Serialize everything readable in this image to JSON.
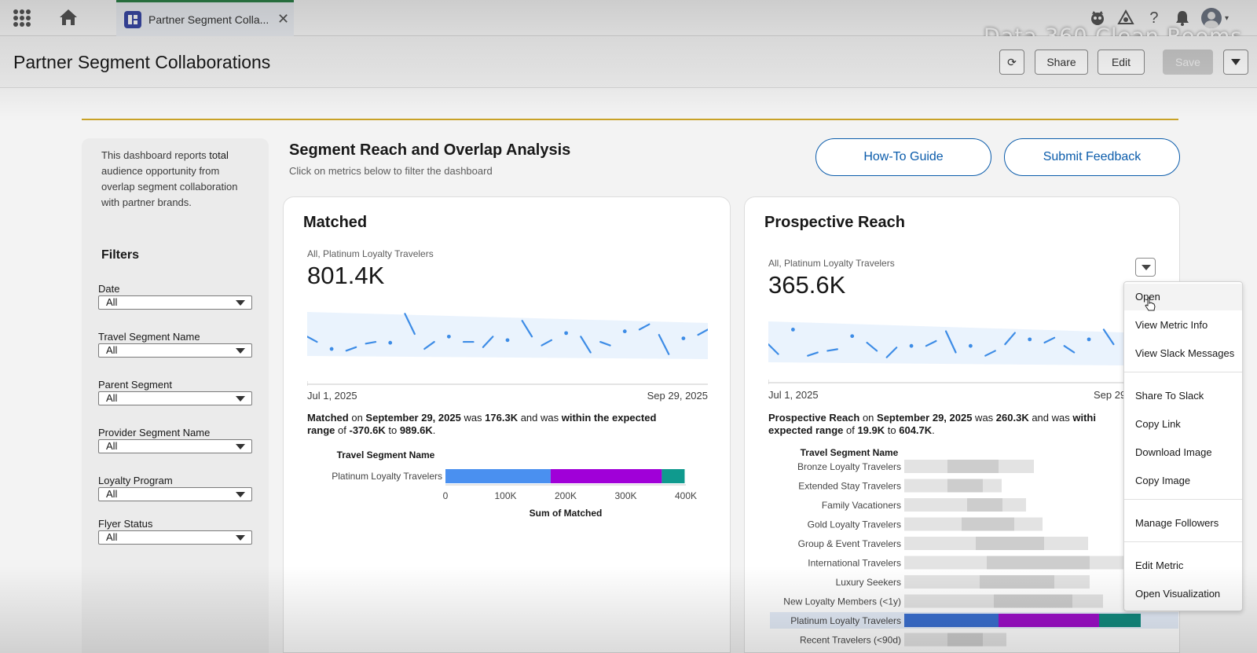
{
  "global_header": {
    "tab_label": "Partner Segment Colla...",
    "tab_close": "✕",
    "watermark": "Data 360 Clean Rooms",
    "help_glyph": "?"
  },
  "page_header": {
    "title": "Partner Segment Collaborations",
    "refresh_glyph": "⟳",
    "share": "Share",
    "edit": "Edit",
    "save": "Save"
  },
  "sidebar": {
    "desc_pre": "This dashboard reports ",
    "desc_bold": "total",
    "desc_post": " audience opportunity from overlap segment collaboration with partner brands.",
    "filters_title": "Filters",
    "filters": [
      {
        "label": "Date",
        "value": "All"
      },
      {
        "label": "Travel Segment Name",
        "value": "All"
      },
      {
        "label": "Parent Segment",
        "value": "All"
      },
      {
        "label": "Provider Segment Name",
        "value": "All"
      },
      {
        "label": "Loyalty Program",
        "value": "All"
      },
      {
        "label": "Flyer Status",
        "value": "All"
      }
    ]
  },
  "section": {
    "title": "Segment Reach and Overlap Analysis",
    "subtitle": "Click on metrics below to filter the dashboard",
    "howto": "How-To Guide",
    "feedback": "Submit Feedback"
  },
  "cards": {
    "matched": {
      "title": "Matched",
      "caption": "All, Platinum Loyalty Travelers",
      "value": "801.4K",
      "date_start": "Jul 1, 2025",
      "date_end": "Sep 29, 2025",
      "insight": {
        "metric": "Matched",
        "on": " on ",
        "date": "September 29, 2025",
        "was": " was ",
        "amount": "176.3K",
        "and": " and was ",
        "within": "within the expected",
        "range_word": "range",
        "of": " of ",
        "low": "-370.6K",
        "to": " to ",
        "high": "989.6K",
        "end": "."
      }
    },
    "prospective": {
      "title": "Prospective Reach",
      "caption": "All, Platinum Loyalty Travelers",
      "value": "365.6K",
      "date_start": "Jul 1, 2025",
      "date_end": "Sep 29",
      "insight": {
        "metric": "Prospective Reach",
        "on": " on ",
        "date": "September 29, 2025",
        "was": " was ",
        "amount": "260.3K",
        "and": " and was ",
        "within": "withi",
        "expected": "expected range",
        "of": " of ",
        "low": "19.9K",
        "to": " to ",
        "high": "604.7K",
        "end": "."
      }
    }
  },
  "chart_data": [
    {
      "type": "bar",
      "orientation": "horizontal",
      "stacked": true,
      "title": "Travel Segment Name",
      "xlabel": "Sum of Matched",
      "categories": [
        "Platinum Loyalty Travelers"
      ],
      "series": [
        {
          "values": [
            175000
          ],
          "color": "#4a90f0"
        },
        {
          "values": [
            185000
          ],
          "color": "#a000d8"
        },
        {
          "values": [
            38000
          ],
          "color": "#0f9a8e"
        }
      ],
      "xlim": [
        0,
        400000
      ],
      "x_ticks": [
        "0",
        "100K",
        "200K",
        "300K",
        "400K"
      ]
    },
    {
      "type": "bar",
      "orientation": "horizontal",
      "stacked": true,
      "title": "Travel Segment Name",
      "categories": [
        "Bronze Loyalty Travelers",
        "Extended Stay Travelers",
        "Family Vacationers",
        "Gold Loyalty Travelers",
        "Group & Event Travelers",
        "International Travelers",
        "Luxury Seekers",
        "New Loyalty Members (<1y)",
        "Platinum Loyalty Travelers",
        "Recent Travelers (<90d)"
      ],
      "highlighted": "Platinum Loyalty Travelers",
      "series": [
        {
          "values": [
            55,
            55,
            80,
            73,
            91,
            105,
            96,
            114,
            120,
            55
          ],
          "color": "#e3e3e3",
          "highlight_color": "#3a6fd0"
        },
        {
          "values": [
            65,
            45,
            45,
            67,
            87,
            131,
            95,
            100,
            128,
            45
          ],
          "color": "#cdcdcd",
          "highlight_color": "#9c10c8"
        },
        {
          "values": [
            45,
            24,
            30,
            36,
            56,
            50,
            45,
            39,
            53,
            30
          ],
          "color": "#e3e3e3",
          "highlight_color": "#138a7f"
        }
      ]
    }
  ],
  "sparklines": {
    "matched": [
      52,
      46,
      38,
      72,
      36,
      40,
      44,
      46,
      45,
      62,
      78,
      55,
      38,
      46,
      52,
      36,
      46,
      46,
      40,
      52,
      48,
      36,
      70,
      52,
      42,
      48,
      56,
      40,
      52,
      34,
      46,
      42,
      58,
      48,
      60,
      66,
      54,
      32,
      50,
      58,
      54,
      60
    ],
    "prospective": [
      52,
      40,
      70,
      48,
      38,
      42,
      44,
      46,
      62,
      74,
      54,
      44,
      36,
      48,
      50,
      40,
      50,
      56,
      68,
      42,
      50,
      40,
      38,
      44,
      52,
      66,
      58,
      48,
      54,
      60,
      50,
      42,
      58,
      62,
      70,
      52,
      44
    ]
  },
  "menu": {
    "items": [
      "Open",
      "View Metric Info",
      "View Slack Messages",
      "Share To Slack",
      "Copy Link",
      "Download Image",
      "Copy Image",
      "Manage Followers",
      "Edit Metric",
      "Open Visualization"
    ]
  },
  "colors": {
    "accent_blue": "#0b5cab",
    "gold_rule": "#c9a227",
    "spark_line": "#3d8ce6",
    "spark_band": "#eaf3fd"
  }
}
